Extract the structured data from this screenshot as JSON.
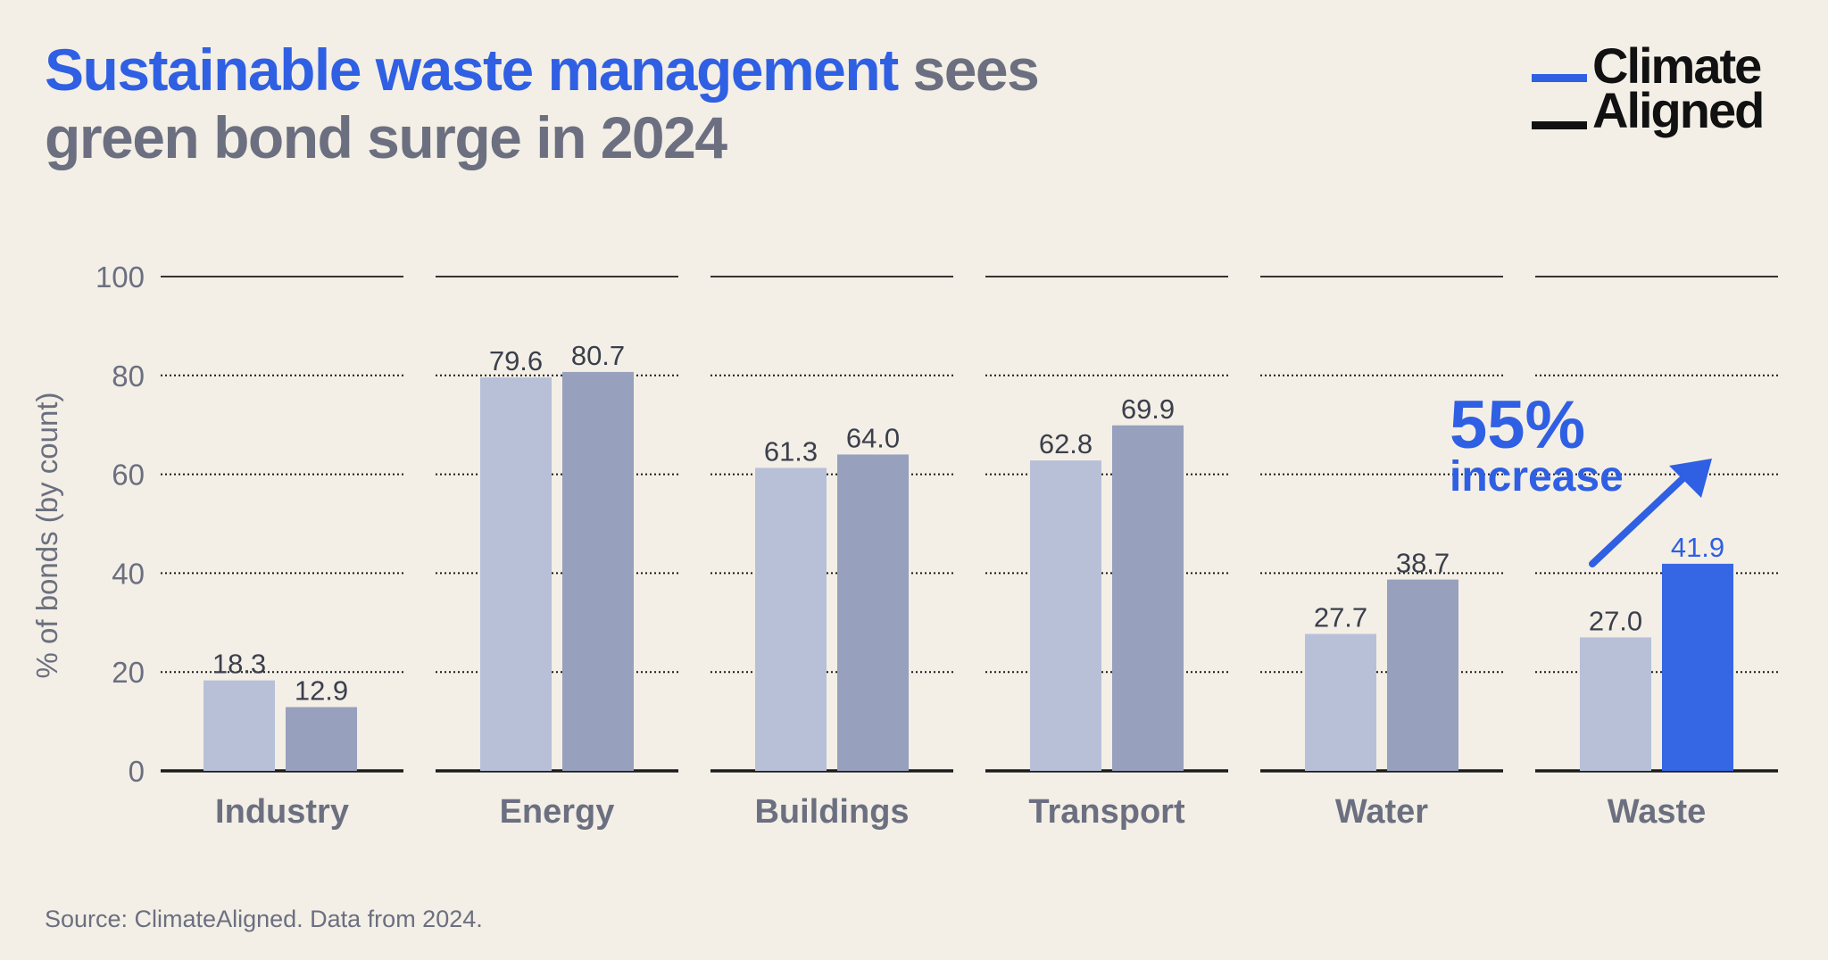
{
  "title": {
    "highlight": "Sustainable waste management",
    "rest_line1": " sees",
    "line2": "green bond surge in 2024"
  },
  "logo": {
    "line1": "Climate",
    "line2": "Aligned",
    "line1_color": "#2f5fe3",
    "line2_color": "#111111"
  },
  "source": "Source: ClimateAligned. Data from 2024.",
  "colors": {
    "light_bar": "#b8c0d8",
    "dark_bar": "#97a0bc",
    "highlight_bar": "#3566e3",
    "accent": "#2f5fe3",
    "text": "#6b6f80",
    "label": "#3b3f4c"
  },
  "chart_data": {
    "type": "bar",
    "ylabel": "% of bonds (by count)",
    "ylim": [
      0,
      100
    ],
    "yticks": [
      0,
      20,
      40,
      60,
      80,
      100
    ],
    "grid": true,
    "categories": [
      "Industry",
      "Energy",
      "Buildings",
      "Transport",
      "Water",
      "Waste"
    ],
    "series": [
      {
        "values": [
          18.3,
          79.6,
          61.3,
          62.8,
          27.7,
          27.0
        ]
      },
      {
        "values": [
          12.9,
          80.7,
          64.0,
          69.9,
          38.7,
          41.9
        ]
      }
    ],
    "value_labels": [
      [
        "18.3",
        "12.9"
      ],
      [
        "79.6",
        "80.7"
      ],
      [
        "61.3",
        "64.0"
      ],
      [
        "62.8",
        "69.9"
      ],
      [
        "27.7",
        "38.7"
      ],
      [
        "27.0",
        "41.9"
      ]
    ],
    "highlight": {
      "category": "Waste",
      "series_index": 1
    },
    "annotation": {
      "value": "55%",
      "text": "increase"
    }
  }
}
